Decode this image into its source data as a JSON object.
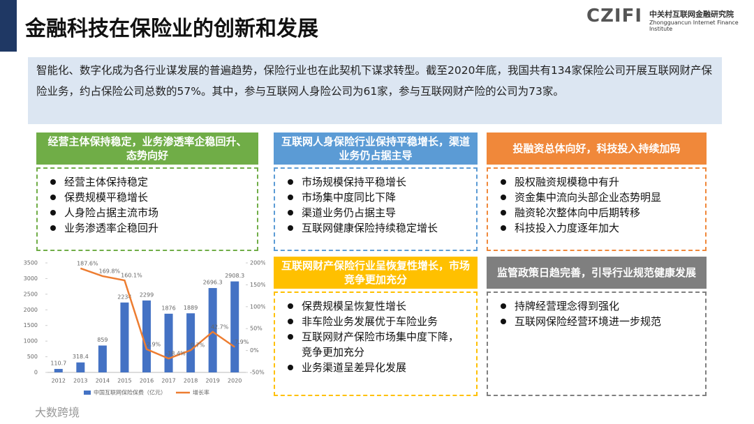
{
  "header": {
    "title": "金融科技在保险业的创新和发展",
    "logo": "CZIFI",
    "org_cn": "中关村互联网金融研究院",
    "org_en": "Zhongguancun Internet Finance Institute"
  },
  "intro": "智能化、数字化成为各行业谋发展的普遍趋势，保险行业也在此契机下谋求转型。截至2020年底，我国共有134家保险公司开展互联网财产保险业务，约占保险公司总数的57%。其中，参与互联网人身险公司为61家，参与互联网财产险的公司为73家。",
  "panels": [
    {
      "title": "经营主体保持稳定，业务渗透率企稳回升、态势向好",
      "color": "#70ad47",
      "items": [
        "经营主体保持稳定",
        "保费规模平稳增长",
        "人身险占据主流市场",
        "业务渗透率企稳回升"
      ]
    },
    {
      "title": "互联网人身保险行业保持平稳增长，渠道业务仍占据主导",
      "color": "#5b9bd5",
      "items": [
        "市场规模保持平稳增长",
        "市场集中度同比下降",
        "渠道业务仍占据主导",
        "互联网健康保险持续稳定增长"
      ]
    },
    {
      "title": "投融资总体向好，科技投入持续加码",
      "color": "#f0883a",
      "items": [
        "股权融资规模稳中有升",
        "资金集中流向头部企业态势明显",
        "融资轮次整体向中后期转移",
        "科技投入力度逐年加大"
      ]
    },
    {
      "title": "互联网财产保险行业呈恢复性增长，市场竞争更加充分",
      "color": "#ffc000",
      "items": [
        "保费规模呈恢复性增长",
        "非车险业务发展优于车险业务",
        "互联网财产保险市场集中度下降，竞争更加充分",
        "业务渠道呈差异化发展"
      ]
    },
    {
      "title": "监管政策日趋完善，引导行业规范健康发展",
      "color": "#7f7f7f",
      "items": [
        "持牌经营理念得到强化",
        "互联网保险经营环境进一步规范"
      ]
    }
  ],
  "chart_data": {
    "type": "bar-line",
    "categories": [
      "2012",
      "2013",
      "2014",
      "2015",
      "2016",
      "2017",
      "2018",
      "2019",
      "2020"
    ],
    "series": [
      {
        "name": "中国互联网保险保费（亿元）",
        "color": "#4472c4",
        "values": [
          110.7,
          318.4,
          859,
          2234,
          2299,
          1876,
          1889,
          2696.3,
          2908.3
        ]
      },
      {
        "name": "增长率",
        "color": "#ed7d31",
        "axis": "y2",
        "values": [
          null,
          187.6,
          169.8,
          160.1,
          2.9,
          -18.4,
          0.7,
          42.7,
          7.9
        ],
        "value_labels": [
          null,
          "187.6%",
          "169.8%",
          "160.1%",
          "2.9%",
          "-18.4%",
          "0.7%",
          "42.7%",
          "7.9%"
        ]
      }
    ],
    "ylim": [
      0,
      3500
    ],
    "yticks": [
      0,
      500,
      1000,
      1500,
      2000,
      2500,
      3000,
      3500
    ],
    "y2lim": [
      -50,
      200
    ],
    "y2ticks": [
      {
        "value": -50,
        "label": "-50%"
      },
      {
        "value": 0,
        "label": "0%"
      },
      {
        "value": 50,
        "label": "50%"
      },
      {
        "value": 100,
        "label": "100%"
      },
      {
        "value": 150,
        "label": "150%"
      },
      {
        "value": 200,
        "label": "200%"
      }
    ]
  },
  "watermark": "大数跨境"
}
